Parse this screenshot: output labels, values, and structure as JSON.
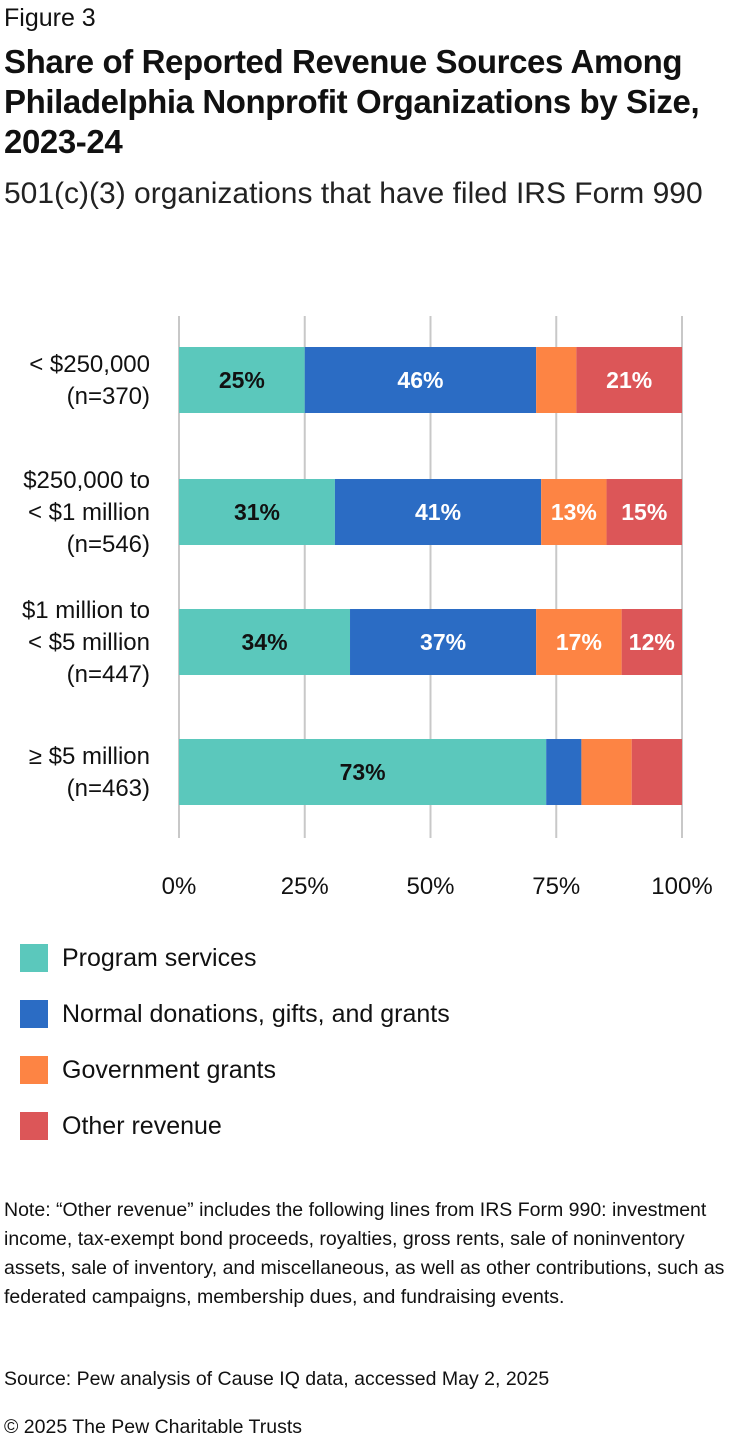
{
  "figure_label": "Figure 3",
  "chart_data": {
    "type": "bar",
    "orientation": "horizontal",
    "stacked": true,
    "title": "Share of Reported Revenue Sources Among Philadelphia Nonprofit Organizations by Size, 2023-24",
    "subtitle": "501(c)(3) organizations that have filed IRS Form 990",
    "categories": [
      [
        "< $250,000",
        "(n=370)"
      ],
      [
        "$250,000 to",
        "< $1 million",
        "(n=546)"
      ],
      [
        "$1 million to",
        "< $5 million",
        "(n=447)"
      ],
      [
        "≥ $5 million",
        "(n=463)"
      ]
    ],
    "series": [
      {
        "name": "Program services",
        "color": "#5bc8bc",
        "label_color": "#111111",
        "values": [
          25,
          31,
          34,
          73
        ],
        "labels": [
          "25%",
          "31%",
          "34%",
          "73%"
        ]
      },
      {
        "name": "Normal donations, gifts, and grants",
        "color": "#2b6cc4",
        "label_color": "#ffffff",
        "values": [
          46,
          41,
          37,
          7
        ],
        "labels": [
          "46%",
          "41%",
          "37%",
          ""
        ]
      },
      {
        "name": "Government grants",
        "color": "#fd8444",
        "label_color": "#ffffff",
        "values": [
          8,
          13,
          17,
          10
        ],
        "labels": [
          "",
          "13%",
          "17%",
          ""
        ]
      },
      {
        "name": "Other revenue",
        "color": "#dc5658",
        "label_color": "#ffffff",
        "values": [
          21,
          15,
          12,
          10
        ],
        "labels": [
          "21%",
          "15%",
          "12%",
          ""
        ]
      }
    ],
    "xlim": [
      0,
      100
    ],
    "x_ticks": [
      "0%",
      "25%",
      "50%",
      "75%",
      "100%"
    ],
    "x_tick_values": [
      0,
      25,
      50,
      75,
      100
    ],
    "grid": true,
    "legend_position": "bottom"
  },
  "note": "Note: “Other revenue” includes the following lines from IRS Form 990: investment income, tax-exempt bond proceeds, royalties, gross rents, sale of noninventory assets, sale of inventory, and miscellaneous, as well as other contributions, such as federated campaigns, membership dues, and fundraising events.",
  "source": "Source: Pew analysis of Cause IQ data, accessed May 2, 2025",
  "copyright": "© 2025 The Pew Charitable Trusts"
}
